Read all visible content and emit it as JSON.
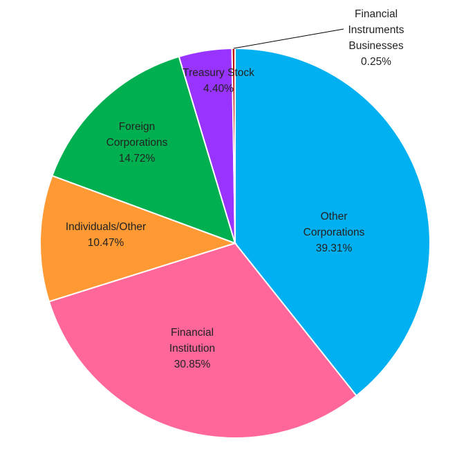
{
  "chart_data": {
    "type": "pie",
    "start_angle_deg": 0,
    "direction": "clockwise",
    "legend": "none",
    "slices": [
      {
        "name": "Other Corporations",
        "value": 39.31,
        "label_lines": [
          "Other",
          "Corporations",
          "39.31%"
        ],
        "color": "#00B0F0"
      },
      {
        "name": "Financial Institution",
        "value": 30.85,
        "label_lines": [
          "Financial",
          "Institution",
          "30.85%"
        ],
        "color": "#FF6699"
      },
      {
        "name": "Individuals/Other",
        "value": 10.47,
        "label_lines": [
          "Individuals/Other",
          "10.47%"
        ],
        "color": "#FF9933"
      },
      {
        "name": "Foreign Corporations",
        "value": 14.72,
        "label_lines": [
          "Foreign",
          "Corporations",
          "14.72%"
        ],
        "color": "#00B050"
      },
      {
        "name": "Treasury Stock",
        "value": 4.4,
        "label_lines": [
          "Treasury Stock",
          "4.40%"
        ],
        "color": "#9933FF"
      },
      {
        "name": "Financial Instruments Businesses",
        "value": 0.25,
        "label_lines": [
          "Financial",
          "Instruments",
          "Businesses",
          "0.25%"
        ],
        "color": "#C00000"
      }
    ]
  }
}
